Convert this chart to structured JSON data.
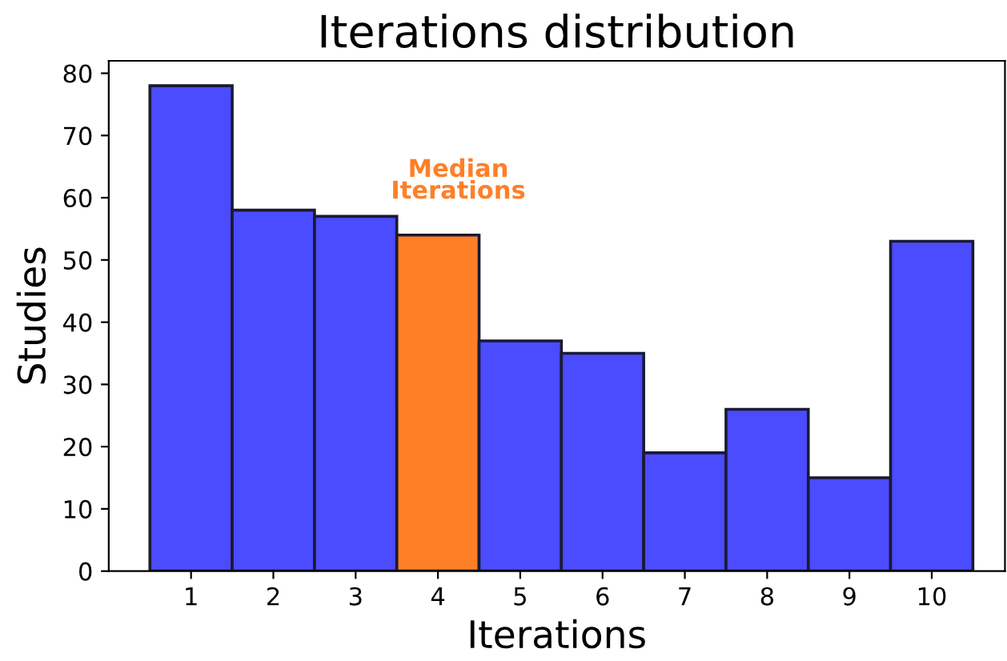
{
  "chart_data": {
    "type": "bar",
    "title": "Iterations distribution",
    "xlabel": "Iterations",
    "ylabel": "Studies",
    "categories": [
      "1",
      "2",
      "3",
      "4",
      "5",
      "6",
      "7",
      "8",
      "9",
      "10"
    ],
    "values": [
      78,
      58,
      57,
      54,
      37,
      35,
      19,
      26,
      15,
      53
    ],
    "colors": [
      "#4b4bff",
      "#4b4bff",
      "#4b4bff",
      "#ff7f27",
      "#4b4bff",
      "#4b4bff",
      "#4b4bff",
      "#4b4bff",
      "#4b4bff",
      "#4b4bff"
    ],
    "ylim": [
      0,
      82
    ],
    "yticks": [
      0,
      10,
      20,
      30,
      40,
      50,
      60,
      70,
      80
    ],
    "grid": false,
    "legend": false,
    "annotations": [
      "Median\nIterations"
    ]
  }
}
